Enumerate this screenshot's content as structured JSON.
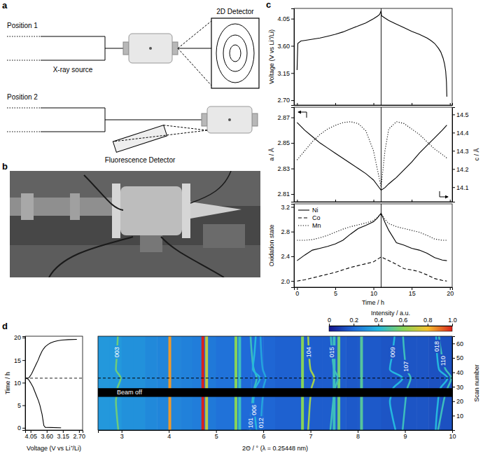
{
  "panels": [
    "a",
    "b",
    "c",
    "d"
  ],
  "diagram": {
    "position_1": {
      "label": "Position 1",
      "source": "X-ray source",
      "detector": "2D Detector"
    },
    "position_2": {
      "label": "Position 2",
      "detector": "Fluorescence Detector"
    }
  },
  "chart_data": [
    {
      "type": "line",
      "ylabel": "Voltage (V vs Li⁺/Li)",
      "x": [
        0,
        0.1,
        0.5,
        1,
        2,
        3,
        4,
        5,
        6,
        7,
        8,
        9,
        10,
        10.5,
        10.8,
        11,
        11.05,
        11.5,
        12,
        13,
        14,
        15,
        16,
        17,
        17.5,
        18,
        18.5,
        18.8,
        19.1,
        19.3,
        19.45,
        19.55,
        19.6
      ],
      "values": [
        3.2,
        3.64,
        3.68,
        3.69,
        3.71,
        3.73,
        3.76,
        3.79,
        3.83,
        3.88,
        3.93,
        3.98,
        4.05,
        4.09,
        4.12,
        4.18,
        4.1,
        4.06,
        4.02,
        3.96,
        3.9,
        3.84,
        3.79,
        3.73,
        3.69,
        3.64,
        3.56,
        3.5,
        3.4,
        3.3,
        3.18,
        3.0,
        2.76
      ],
      "color": "#000000",
      "xlim": [
        -0.4,
        20.3
      ],
      "xticks": [
        0,
        5,
        10,
        15,
        20
      ],
      "ylim": [
        2.62,
        4.22
      ],
      "yticks": [
        {
          "value": 2.7,
          "label": "2.70"
        },
        3.15,
        {
          "value": 3.6,
          "label": "3.60"
        },
        4.05
      ],
      "tick_labels": "y",
      "vlines": [
        11
      ]
    },
    {
      "type": "line",
      "ylabel": "a / Å",
      "y2label": "c / Å",
      "x": [
        0,
        1,
        2,
        3,
        4,
        5,
        6,
        7,
        8,
        9,
        10,
        10.5,
        11,
        11.5,
        12,
        13,
        14,
        15,
        16,
        17,
        18,
        19,
        19.6
      ],
      "series": [
        {
          "values": [
            2.866,
            2.86,
            2.855,
            2.85,
            2.846,
            2.842,
            2.838,
            2.834,
            2.83,
            2.826,
            2.821,
            2.817,
            2.813,
            2.815,
            2.818,
            2.823,
            2.829,
            2.835,
            2.842,
            2.848,
            2.854,
            2.86,
            2.864
          ],
          "color": "#000000",
          "line_style": "solid"
        },
        {
          "values": [
            14.25,
            14.3,
            14.35,
            14.39,
            14.42,
            14.44,
            14.455,
            14.46,
            14.45,
            14.41,
            14.3,
            14.2,
            14.1,
            14.3,
            14.42,
            14.46,
            14.45,
            14.42,
            14.39,
            14.35,
            14.31,
            14.28,
            14.26
          ],
          "color": "#000000",
          "line_style": "dotted",
          "axis": "y2"
        }
      ],
      "xlim": [
        -0.4,
        20.3
      ],
      "xticks": [
        0,
        5,
        10,
        15,
        20
      ],
      "ylim": [
        2.804,
        2.878
      ],
      "yticks": [
        2.81,
        2.83,
        2.85,
        2.87
      ],
      "y2lim": [
        14.02,
        14.54
      ],
      "y2ticks": [
        14.1,
        14.2,
        14.3,
        14.4,
        14.5
      ],
      "tick_labels": "y",
      "vlines": [
        11
      ]
    },
    {
      "type": "line",
      "xlabel": "Time / h",
      "ylabel": "Oxidation state",
      "x": [
        0,
        1,
        2,
        3,
        4,
        5,
        6,
        7,
        8,
        9,
        10,
        10.5,
        11,
        11.5,
        12,
        13,
        14,
        15,
        16,
        17,
        18,
        19,
        19.6
      ],
      "series": [
        {
          "name": "Ni",
          "values": [
            2.33,
            2.42,
            2.5,
            2.53,
            2.56,
            2.6,
            2.66,
            2.76,
            2.85,
            2.9,
            2.96,
            3.02,
            3.1,
            2.95,
            2.82,
            2.62,
            2.58,
            2.53,
            2.5,
            2.45,
            2.38,
            2.34,
            2.33
          ],
          "color": "#000000",
          "line_style": "solid"
        },
        {
          "name": "Co",
          "values": [
            2.0,
            2.02,
            2.05,
            2.08,
            2.11,
            2.14,
            2.18,
            2.22,
            2.25,
            2.28,
            2.31,
            2.35,
            2.39,
            2.36,
            2.33,
            2.27,
            2.2,
            2.18,
            2.15,
            2.1,
            2.04,
            2.01,
            2.0
          ],
          "color": "#000000",
          "line_style": "dashed"
        },
        {
          "name": "Mn",
          "values": [
            2.66,
            2.66,
            2.67,
            2.7,
            2.74,
            2.79,
            2.84,
            2.88,
            2.91,
            2.94,
            2.98,
            3.03,
            3.09,
            3.0,
            2.93,
            2.88,
            2.85,
            2.82,
            2.79,
            2.74,
            2.68,
            2.66,
            2.66
          ],
          "color": "#000000",
          "line_style": "dotted"
        }
      ],
      "xlim": [
        -0.4,
        20.3
      ],
      "xticks": [
        0,
        5,
        10,
        15,
        20
      ],
      "ylim": [
        1.9,
        3.25
      ],
      "yticks": [
        {
          "value": 2,
          "label": "2.0"
        },
        2.4,
        2.8,
        3.2
      ],
      "legend": "upper left",
      "vlines": [
        11
      ]
    },
    {
      "type": "line",
      "xlabel": "Voltage (V vs Li⁺/Li)",
      "ylabel": "Time / h",
      "x": [
        3.2,
        3.64,
        3.68,
        3.69,
        3.71,
        3.73,
        3.76,
        3.79,
        3.83,
        3.88,
        3.93,
        3.98,
        4.05,
        4.09,
        4.12,
        4.18,
        4.1,
        4.06,
        4.02,
        3.96,
        3.9,
        3.84,
        3.79,
        3.73,
        3.69,
        3.64,
        3.56,
        3.5,
        3.4,
        3.3,
        3.18,
        3.0,
        2.76
      ],
      "values": [
        0,
        0.1,
        0.5,
        1,
        2,
        3,
        4,
        5,
        6,
        7,
        8,
        9,
        10,
        10.5,
        10.8,
        11,
        11.05,
        11.5,
        12,
        13,
        14,
        15,
        16,
        17,
        17.5,
        18,
        18.5,
        18.8,
        19.1,
        19.3,
        19.45,
        19.55,
        19.6
      ],
      "color": "#000000",
      "xlim": [
        4.2,
        2.6
      ],
      "xticks": [
        4.05,
        {
          "value": 3.6,
          "label": "3.60"
        },
        3.15,
        {
          "value": 2.7,
          "label": "2.70"
        }
      ],
      "ylim": [
        -0.5,
        20.3
      ],
      "yticks": [
        0,
        5,
        10,
        15,
        20
      ],
      "hlines": [
        11
      ]
    },
    {
      "type": "heatmap",
      "xlabel": "2Θ / ° (λ = 0.25448 nm)",
      "ylabel": "Scan number",
      "xlim": [
        2.5,
        10
      ],
      "xticks": [
        3,
        4,
        5,
        6,
        7,
        8,
        9,
        10
      ],
      "ylim": [
        0,
        65
      ],
      "yticks": [
        10,
        20,
        30,
        40,
        50,
        60
      ],
      "scans": [
        0,
        10,
        20,
        23,
        29,
        36,
        42,
        52,
        65
      ],
      "background": {
        "bins": [
          2.5,
          2.75,
          3,
          3.25,
          3.5,
          3.75,
          4,
          4.25,
          4.5,
          4.75,
          5,
          5.25,
          5.5,
          5.75,
          6,
          6.25,
          6.5,
          6.75,
          7,
          7.25,
          7.5,
          7.75,
          8,
          8.25,
          8.5,
          8.75,
          9,
          9.25,
          9.5,
          9.75,
          10
        ],
        "intensity": [
          0.32,
          0.32,
          0.3,
          0.3,
          0.28,
          0.27,
          0.27,
          0.26,
          0.25,
          0.24,
          0.22,
          0.22,
          0.2,
          0.2,
          0.19,
          0.18,
          0.18,
          0.18,
          0.17,
          0.17,
          0.17,
          0.16,
          0.16,
          0.16,
          0.15,
          0.15,
          0.15,
          0.15,
          0.14,
          0.14
        ]
      },
      "lines": [
        {
          "two_theta": 4.02,
          "intensity": 0.85
        },
        {
          "two_theta": 4.72,
          "intensity": 1.0
        },
        {
          "two_theta": 4.8,
          "intensity": 0.7
        },
        {
          "two_theta": 5.42,
          "intensity": 0.6
        },
        {
          "two_theta": 5.5,
          "intensity": 0.45
        },
        {
          "two_theta": 6.83,
          "intensity": 0.6
        },
        {
          "two_theta": 7.5,
          "intensity": 0.45
        },
        {
          "two_theta": 7.6,
          "intensity": 0.55
        },
        {
          "two_theta": 8.08,
          "intensity": 0.5
        }
      ],
      "peaks": [
        {
          "label": "003",
          "two_theta": [
            2.93,
            2.9,
            2.88,
            2.89,
            2.91,
            2.98,
            2.88,
            2.9,
            2.92
          ],
          "intensity": 0.55
        },
        {
          "label": "101",
          "two_theta": [
            5.72,
            5.74,
            5.77,
            5.78,
            5.81,
            5.86,
            5.8,
            5.76,
            5.73
          ],
          "intensity": 0.45
        },
        {
          "label": "006",
          "two_theta": [
            5.86,
            5.82,
            5.79,
            5.8,
            5.83,
            5.93,
            5.78,
            5.81,
            5.84
          ],
          "intensity": 0.4
        },
        {
          "label": "012",
          "two_theta": [
            5.94,
            5.96,
            5.98,
            5.99,
            6.0,
            6.05,
            5.99,
            5.96,
            5.94
          ],
          "intensity": 0.35
        },
        {
          "label": "104",
          "two_theta": [
            6.95,
            6.97,
            6.99,
            7.0,
            7.02,
            7.08,
            7.0,
            6.97,
            6.95
          ],
          "intensity": 0.65
        },
        {
          "label": "015",
          "two_theta": [
            7.42,
            7.45,
            7.48,
            7.49,
            7.52,
            7.58,
            7.5,
            7.46,
            7.43
          ],
          "intensity": 0.45
        },
        {
          "label": "009",
          "two_theta": [
            8.8,
            8.73,
            8.68,
            8.7,
            8.75,
            8.95,
            8.68,
            8.73,
            8.78
          ],
          "intensity": 0.4
        },
        {
          "label": "107",
          "two_theta": [
            8.95,
            8.98,
            9.01,
            9.02,
            9.05,
            9.12,
            9.03,
            8.99,
            8.96
          ],
          "intensity": 0.45
        },
        {
          "label": "018",
          "two_theta": [
            9.65,
            9.67,
            9.7,
            9.71,
            9.75,
            9.9,
            9.72,
            9.68,
            9.66
          ],
          "intensity": 0.4
        },
        {
          "label": "110",
          "two_theta": [
            9.7,
            9.76,
            9.82,
            9.84,
            9.9,
            9.98,
            9.86,
            9.78,
            9.72
          ],
          "intensity": 0.45
        }
      ],
      "beam_off": [
        23,
        29
      ],
      "beam_off_label": "Beam off",
      "hlines": [
        36
      ],
      "colorbar": {
        "label": "Intensity / a.u.",
        "lim": [
          0,
          1
        ],
        "ticks": [
          0,
          0.2,
          0.4,
          0.6,
          0.8,
          {
            "value": 1,
            "label": "1.0"
          }
        ]
      }
    }
  ]
}
